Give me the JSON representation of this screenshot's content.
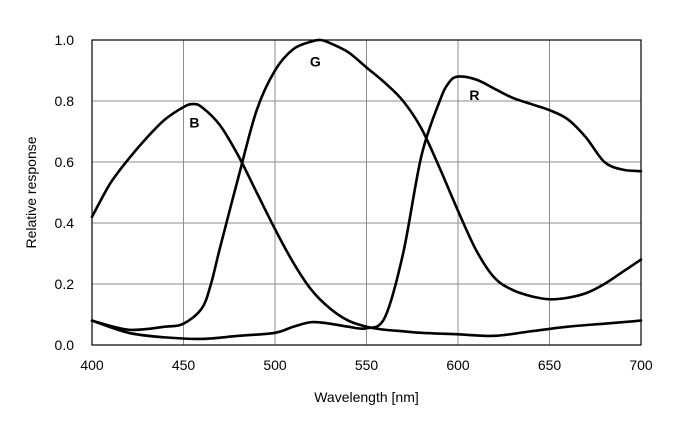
{
  "chart_data": {
    "type": "line",
    "title": "",
    "xlabel": "Wavelength [nm]",
    "ylabel": "Relative response",
    "xlim": [
      400,
      700
    ],
    "ylim": [
      0,
      1.0
    ],
    "x_ticks": [
      400,
      450,
      500,
      550,
      600,
      650,
      700
    ],
    "y_ticks": [
      0.0,
      0.2,
      0.4,
      0.6,
      0.8,
      1.0
    ],
    "x_tick_labels": [
      "400",
      "450",
      "500",
      "550",
      "600",
      "650",
      "700"
    ],
    "y_tick_labels": [
      "0.0",
      "0.2",
      "0.4",
      "0.6",
      "0.8",
      "1.0"
    ],
    "grid": true,
    "legend": "none",
    "series": [
      {
        "name": "B",
        "color": "#000000",
        "x": [
          400,
          410,
          420,
          430,
          440,
          450,
          455,
          460,
          470,
          480,
          490,
          500,
          510,
          520,
          530,
          540,
          550,
          560,
          570,
          580,
          600,
          620,
          640,
          660,
          680,
          700
        ],
        "y": [
          0.42,
          0.53,
          0.61,
          0.68,
          0.74,
          0.78,
          0.79,
          0.78,
          0.72,
          0.62,
          0.5,
          0.38,
          0.27,
          0.18,
          0.12,
          0.08,
          0.06,
          0.05,
          0.045,
          0.04,
          0.035,
          0.03,
          0.045,
          0.06,
          0.07,
          0.08
        ]
      },
      {
        "name": "G",
        "color": "#000000",
        "x": [
          400,
          420,
          440,
          450,
          460,
          465,
          470,
          480,
          490,
          500,
          510,
          520,
          525,
          530,
          540,
          550,
          560,
          570,
          580,
          590,
          600,
          610,
          620,
          630,
          640,
          650,
          660,
          670,
          680,
          690,
          700
        ],
        "y": [
          0.08,
          0.05,
          0.06,
          0.07,
          0.12,
          0.2,
          0.32,
          0.55,
          0.77,
          0.9,
          0.97,
          0.995,
          1.0,
          0.99,
          0.96,
          0.91,
          0.86,
          0.8,
          0.71,
          0.58,
          0.44,
          0.31,
          0.22,
          0.18,
          0.16,
          0.15,
          0.155,
          0.17,
          0.2,
          0.24,
          0.28
        ]
      },
      {
        "name": "R",
        "color": "#000000",
        "x": [
          400,
          420,
          440,
          460,
          480,
          500,
          510,
          520,
          530,
          540,
          550,
          560,
          570,
          580,
          590,
          595,
          600,
          610,
          620,
          630,
          640,
          650,
          660,
          670,
          680,
          690,
          700
        ],
        "y": [
          0.08,
          0.04,
          0.025,
          0.02,
          0.03,
          0.04,
          0.06,
          0.075,
          0.07,
          0.06,
          0.055,
          0.09,
          0.3,
          0.62,
          0.8,
          0.86,
          0.88,
          0.87,
          0.84,
          0.81,
          0.79,
          0.77,
          0.74,
          0.68,
          0.6,
          0.575,
          0.57
        ]
      }
    ],
    "annotations": [
      {
        "text": "B",
        "x": 456,
        "y": 0.73
      },
      {
        "text": "G",
        "x": 522,
        "y": 0.93
      },
      {
        "text": "R",
        "x": 609,
        "y": 0.82
      }
    ]
  }
}
